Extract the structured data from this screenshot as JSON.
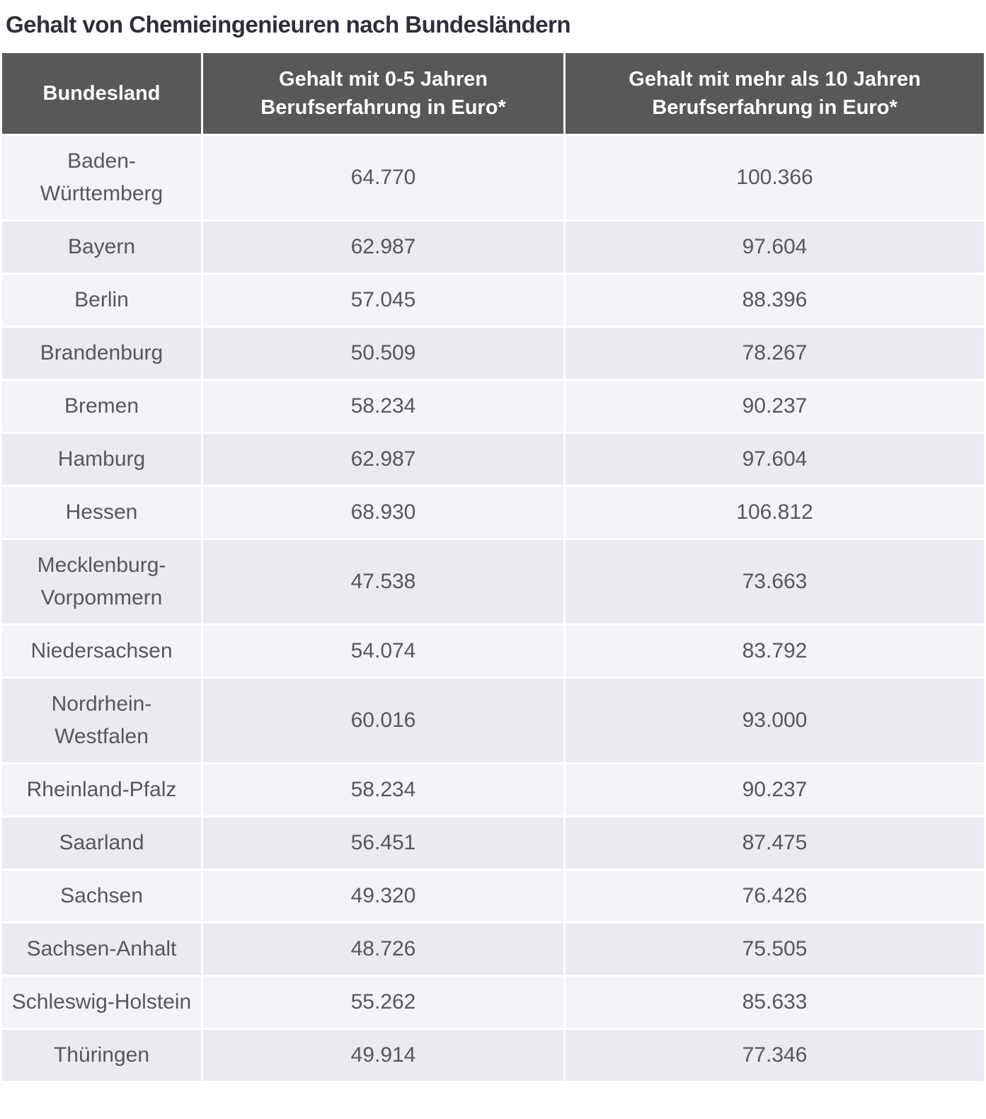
{
  "title": "Gehalt von Chemieingenieuren nach Bundesländern",
  "table": {
    "columns": [
      "Bundesland",
      "Gehalt mit 0-5 Jahren Berufserfahrung in Euro*",
      "Gehalt mit mehr als 10 Jahren Berufserfahrung in Euro*"
    ],
    "rows": [
      {
        "bundesland": "Baden-Württemberg",
        "gehalt_0_5": "64.770",
        "gehalt_10plus": "100.366"
      },
      {
        "bundesland": "Bayern",
        "gehalt_0_5": "62.987",
        "gehalt_10plus": "97.604"
      },
      {
        "bundesland": "Berlin",
        "gehalt_0_5": "57.045",
        "gehalt_10plus": "88.396"
      },
      {
        "bundesland": "Brandenburg",
        "gehalt_0_5": "50.509",
        "gehalt_10plus": "78.267"
      },
      {
        "bundesland": "Bremen",
        "gehalt_0_5": "58.234",
        "gehalt_10plus": "90.237"
      },
      {
        "bundesland": "Hamburg",
        "gehalt_0_5": "62.987",
        "gehalt_10plus": "97.604"
      },
      {
        "bundesland": "Hessen",
        "gehalt_0_5": "68.930",
        "gehalt_10plus": "106.812"
      },
      {
        "bundesland": "Mecklenburg-Vorpommern",
        "gehalt_0_5": "47.538",
        "gehalt_10plus": "73.663"
      },
      {
        "bundesland": "Niedersachsen",
        "gehalt_0_5": "54.074",
        "gehalt_10plus": "83.792"
      },
      {
        "bundesland": "Nordrhein-Westfalen",
        "gehalt_0_5": "60.016",
        "gehalt_10plus": "93.000"
      },
      {
        "bundesland": "Rheinland-Pfalz",
        "gehalt_0_5": "58.234",
        "gehalt_10plus": "90.237"
      },
      {
        "bundesland": "Saarland",
        "gehalt_0_5": "56.451",
        "gehalt_10plus": "87.475"
      },
      {
        "bundesland": "Sachsen",
        "gehalt_0_5": "49.320",
        "gehalt_10plus": "76.426"
      },
      {
        "bundesland": "Sachsen-Anhalt",
        "gehalt_0_5": "48.726",
        "gehalt_10plus": "75.505"
      },
      {
        "bundesland": "Schleswig-Holstein",
        "gehalt_0_5": "55.262",
        "gehalt_10plus": "85.633"
      },
      {
        "bundesland": "Thüringen",
        "gehalt_0_5": "49.914",
        "gehalt_10plus": "77.346"
      }
    ]
  },
  "chart_data": {
    "type": "table",
    "title": "Gehalt von Chemieingenieuren nach Bundesländern",
    "categories": [
      "Baden-Württemberg",
      "Bayern",
      "Berlin",
      "Brandenburg",
      "Bremen",
      "Hamburg",
      "Hessen",
      "Mecklenburg-Vorpommern",
      "Niedersachsen",
      "Nordrhein-Westfalen",
      "Rheinland-Pfalz",
      "Saarland",
      "Sachsen",
      "Sachsen-Anhalt",
      "Schleswig-Holstein",
      "Thüringen"
    ],
    "series": [
      {
        "name": "Gehalt mit 0-5 Jahren Berufserfahrung in Euro*",
        "values": [
          64770,
          62987,
          57045,
          50509,
          58234,
          62987,
          68930,
          47538,
          54074,
          60016,
          58234,
          56451,
          49320,
          48726,
          55262,
          49914
        ]
      },
      {
        "name": "Gehalt mit mehr als 10 Jahren Berufserfahrung in Euro*",
        "values": [
          100366,
          97604,
          88396,
          78267,
          90237,
          97604,
          106812,
          73663,
          83792,
          93000,
          90237,
          87475,
          76426,
          75505,
          85633,
          77346
        ]
      }
    ],
    "number_format": "de-DE thousands separator (.)"
  },
  "colors": {
    "header_background": "#58585a",
    "header_text": "#ffffff",
    "row_odd_background": "#f4f4f8",
    "row_even_background": "#e9ebf1",
    "body_text": "#56575d",
    "title_text": "#2e3038",
    "gridline": "#ffffff"
  }
}
